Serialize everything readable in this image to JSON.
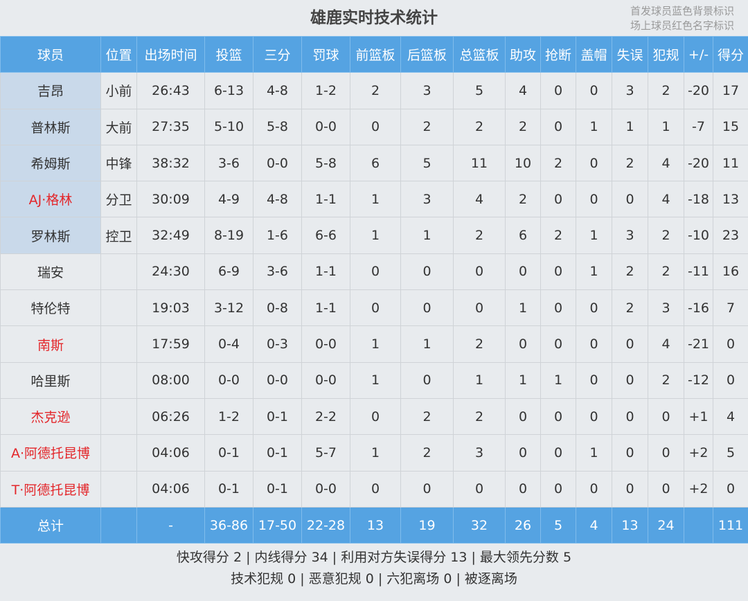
{
  "title": "雄鹿实时技术统计",
  "legend": [
    "首发球员蓝色背景标识",
    "场上球员红色名字标识"
  ],
  "colors": {
    "header": "#55a3e2",
    "starter_bg": "#c9d9ea",
    "oncourt_name": "#e3262a"
  },
  "columns": [
    "球员",
    "位置",
    "出场时间",
    "投篮",
    "三分",
    "罚球",
    "前篮板",
    "后篮板",
    "总篮板",
    "助攻",
    "抢断",
    "盖帽",
    "失误",
    "犯规",
    "+/-",
    "得分"
  ],
  "players": [
    {
      "starter": true,
      "oncourt": false,
      "cells": [
        "吉昂",
        "小前",
        "26:43",
        "6-13",
        "4-8",
        "1-2",
        "2",
        "3",
        "5",
        "4",
        "0",
        "0",
        "3",
        "2",
        "-20",
        "17"
      ]
    },
    {
      "starter": true,
      "oncourt": false,
      "cells": [
        "普林斯",
        "大前",
        "27:35",
        "5-10",
        "5-8",
        "0-0",
        "0",
        "2",
        "2",
        "2",
        "0",
        "1",
        "1",
        "1",
        "-7",
        "15"
      ]
    },
    {
      "starter": true,
      "oncourt": false,
      "cells": [
        "希姆斯",
        "中锋",
        "38:32",
        "3-6",
        "0-0",
        "5-8",
        "6",
        "5",
        "11",
        "10",
        "2",
        "0",
        "2",
        "4",
        "-20",
        "11"
      ]
    },
    {
      "starter": true,
      "oncourt": true,
      "cells": [
        "AJ·格林",
        "分卫",
        "30:09",
        "4-9",
        "4-8",
        "1-1",
        "1",
        "3",
        "4",
        "2",
        "0",
        "0",
        "0",
        "4",
        "-18",
        "13"
      ]
    },
    {
      "starter": true,
      "oncourt": false,
      "cells": [
        "罗林斯",
        "控卫",
        "32:49",
        "8-19",
        "1-6",
        "6-6",
        "1",
        "1",
        "2",
        "6",
        "2",
        "1",
        "3",
        "2",
        "-10",
        "23"
      ]
    },
    {
      "starter": false,
      "oncourt": false,
      "cells": [
        "瑞安",
        "",
        "24:30",
        "6-9",
        "3-6",
        "1-1",
        "0",
        "0",
        "0",
        "0",
        "0",
        "1",
        "2",
        "2",
        "-11",
        "16"
      ]
    },
    {
      "starter": false,
      "oncourt": false,
      "cells": [
        "特伦特",
        "",
        "19:03",
        "3-12",
        "0-8",
        "1-1",
        "0",
        "0",
        "0",
        "1",
        "0",
        "0",
        "2",
        "3",
        "-16",
        "7"
      ]
    },
    {
      "starter": false,
      "oncourt": true,
      "cells": [
        "南斯",
        "",
        "17:59",
        "0-4",
        "0-3",
        "0-0",
        "1",
        "1",
        "2",
        "0",
        "0",
        "0",
        "0",
        "4",
        "-21",
        "0"
      ]
    },
    {
      "starter": false,
      "oncourt": false,
      "cells": [
        "哈里斯",
        "",
        "08:00",
        "0-0",
        "0-0",
        "0-0",
        "1",
        "0",
        "1",
        "1",
        "1",
        "0",
        "0",
        "2",
        "-12",
        "0"
      ]
    },
    {
      "starter": false,
      "oncourt": true,
      "cells": [
        "杰克逊",
        "",
        "06:26",
        "1-2",
        "0-1",
        "2-2",
        "0",
        "2",
        "2",
        "0",
        "0",
        "0",
        "0",
        "0",
        "+1",
        "4"
      ]
    },
    {
      "starter": false,
      "oncourt": true,
      "cells": [
        "A·阿德托昆博",
        "",
        "04:06",
        "0-1",
        "0-1",
        "5-7",
        "1",
        "2",
        "3",
        "0",
        "0",
        "1",
        "0",
        "0",
        "+2",
        "5"
      ]
    },
    {
      "starter": false,
      "oncourt": true,
      "cells": [
        "T·阿德托昆博",
        "",
        "04:06",
        "0-1",
        "0-1",
        "0-0",
        "0",
        "0",
        "0",
        "0",
        "0",
        "0",
        "0",
        "0",
        "+2",
        "0"
      ]
    }
  ],
  "total": [
    "总计",
    "",
    "-",
    "36-86",
    "17-50",
    "22-28",
    "13",
    "19",
    "32",
    "26",
    "5",
    "4",
    "13",
    "24",
    "",
    "111"
  ],
  "footer": [
    "快攻得分 2 | 内线得分 34 | 利用对方失误得分 13 | 最大领先分数 5",
    "技术犯规 0 | 恶意犯规 0 | 六犯离场 0 | 被逐离场"
  ]
}
